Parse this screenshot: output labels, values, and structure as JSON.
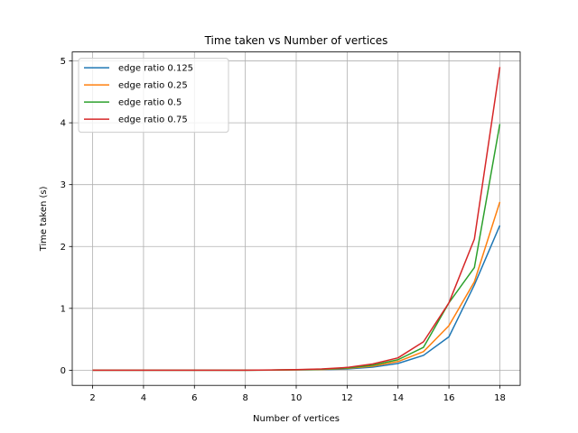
{
  "chart_data": {
    "type": "line",
    "title": "Time taken vs Number of vertices",
    "xlabel": "Number of vertices",
    "ylabel": "Time taken (s)",
    "xlim": [
      1.2,
      18.8
    ],
    "ylim": [
      -0.245,
      5.145
    ],
    "xticks": [
      2,
      4,
      6,
      8,
      10,
      12,
      14,
      16,
      18
    ],
    "yticks": [
      0,
      1,
      2,
      3,
      4,
      5
    ],
    "grid": true,
    "legend_position": "upper-left",
    "x": [
      2,
      3,
      4,
      5,
      6,
      7,
      8,
      9,
      10,
      11,
      12,
      13,
      14,
      15,
      16,
      17,
      18
    ],
    "series": [
      {
        "name": "edge ratio 0.125",
        "color": "#1f77b4",
        "values": [
          0,
          0,
          0,
          0,
          0,
          0,
          0,
          0.002,
          0.005,
          0.01,
          0.02,
          0.05,
          0.11,
          0.24,
          0.54,
          1.38,
          2.34
        ]
      },
      {
        "name": "edge ratio 0.25",
        "color": "#ff7f0e",
        "values": [
          0,
          0,
          0,
          0,
          0,
          0,
          0,
          0.002,
          0.006,
          0.012,
          0.03,
          0.065,
          0.14,
          0.3,
          0.72,
          1.43,
          2.72
        ]
      },
      {
        "name": "edge ratio 0.5",
        "color": "#2ca02c",
        "values": [
          0,
          0,
          0,
          0,
          0,
          0,
          0,
          0.003,
          0.008,
          0.015,
          0.035,
          0.08,
          0.17,
          0.37,
          1.09,
          1.66,
          3.98
        ]
      },
      {
        "name": "edge ratio 0.75",
        "color": "#d62728",
        "values": [
          0,
          0,
          0,
          0,
          0,
          0,
          0,
          0.004,
          0.01,
          0.02,
          0.045,
          0.1,
          0.2,
          0.46,
          1.09,
          2.12,
          4.9
        ]
      }
    ]
  }
}
